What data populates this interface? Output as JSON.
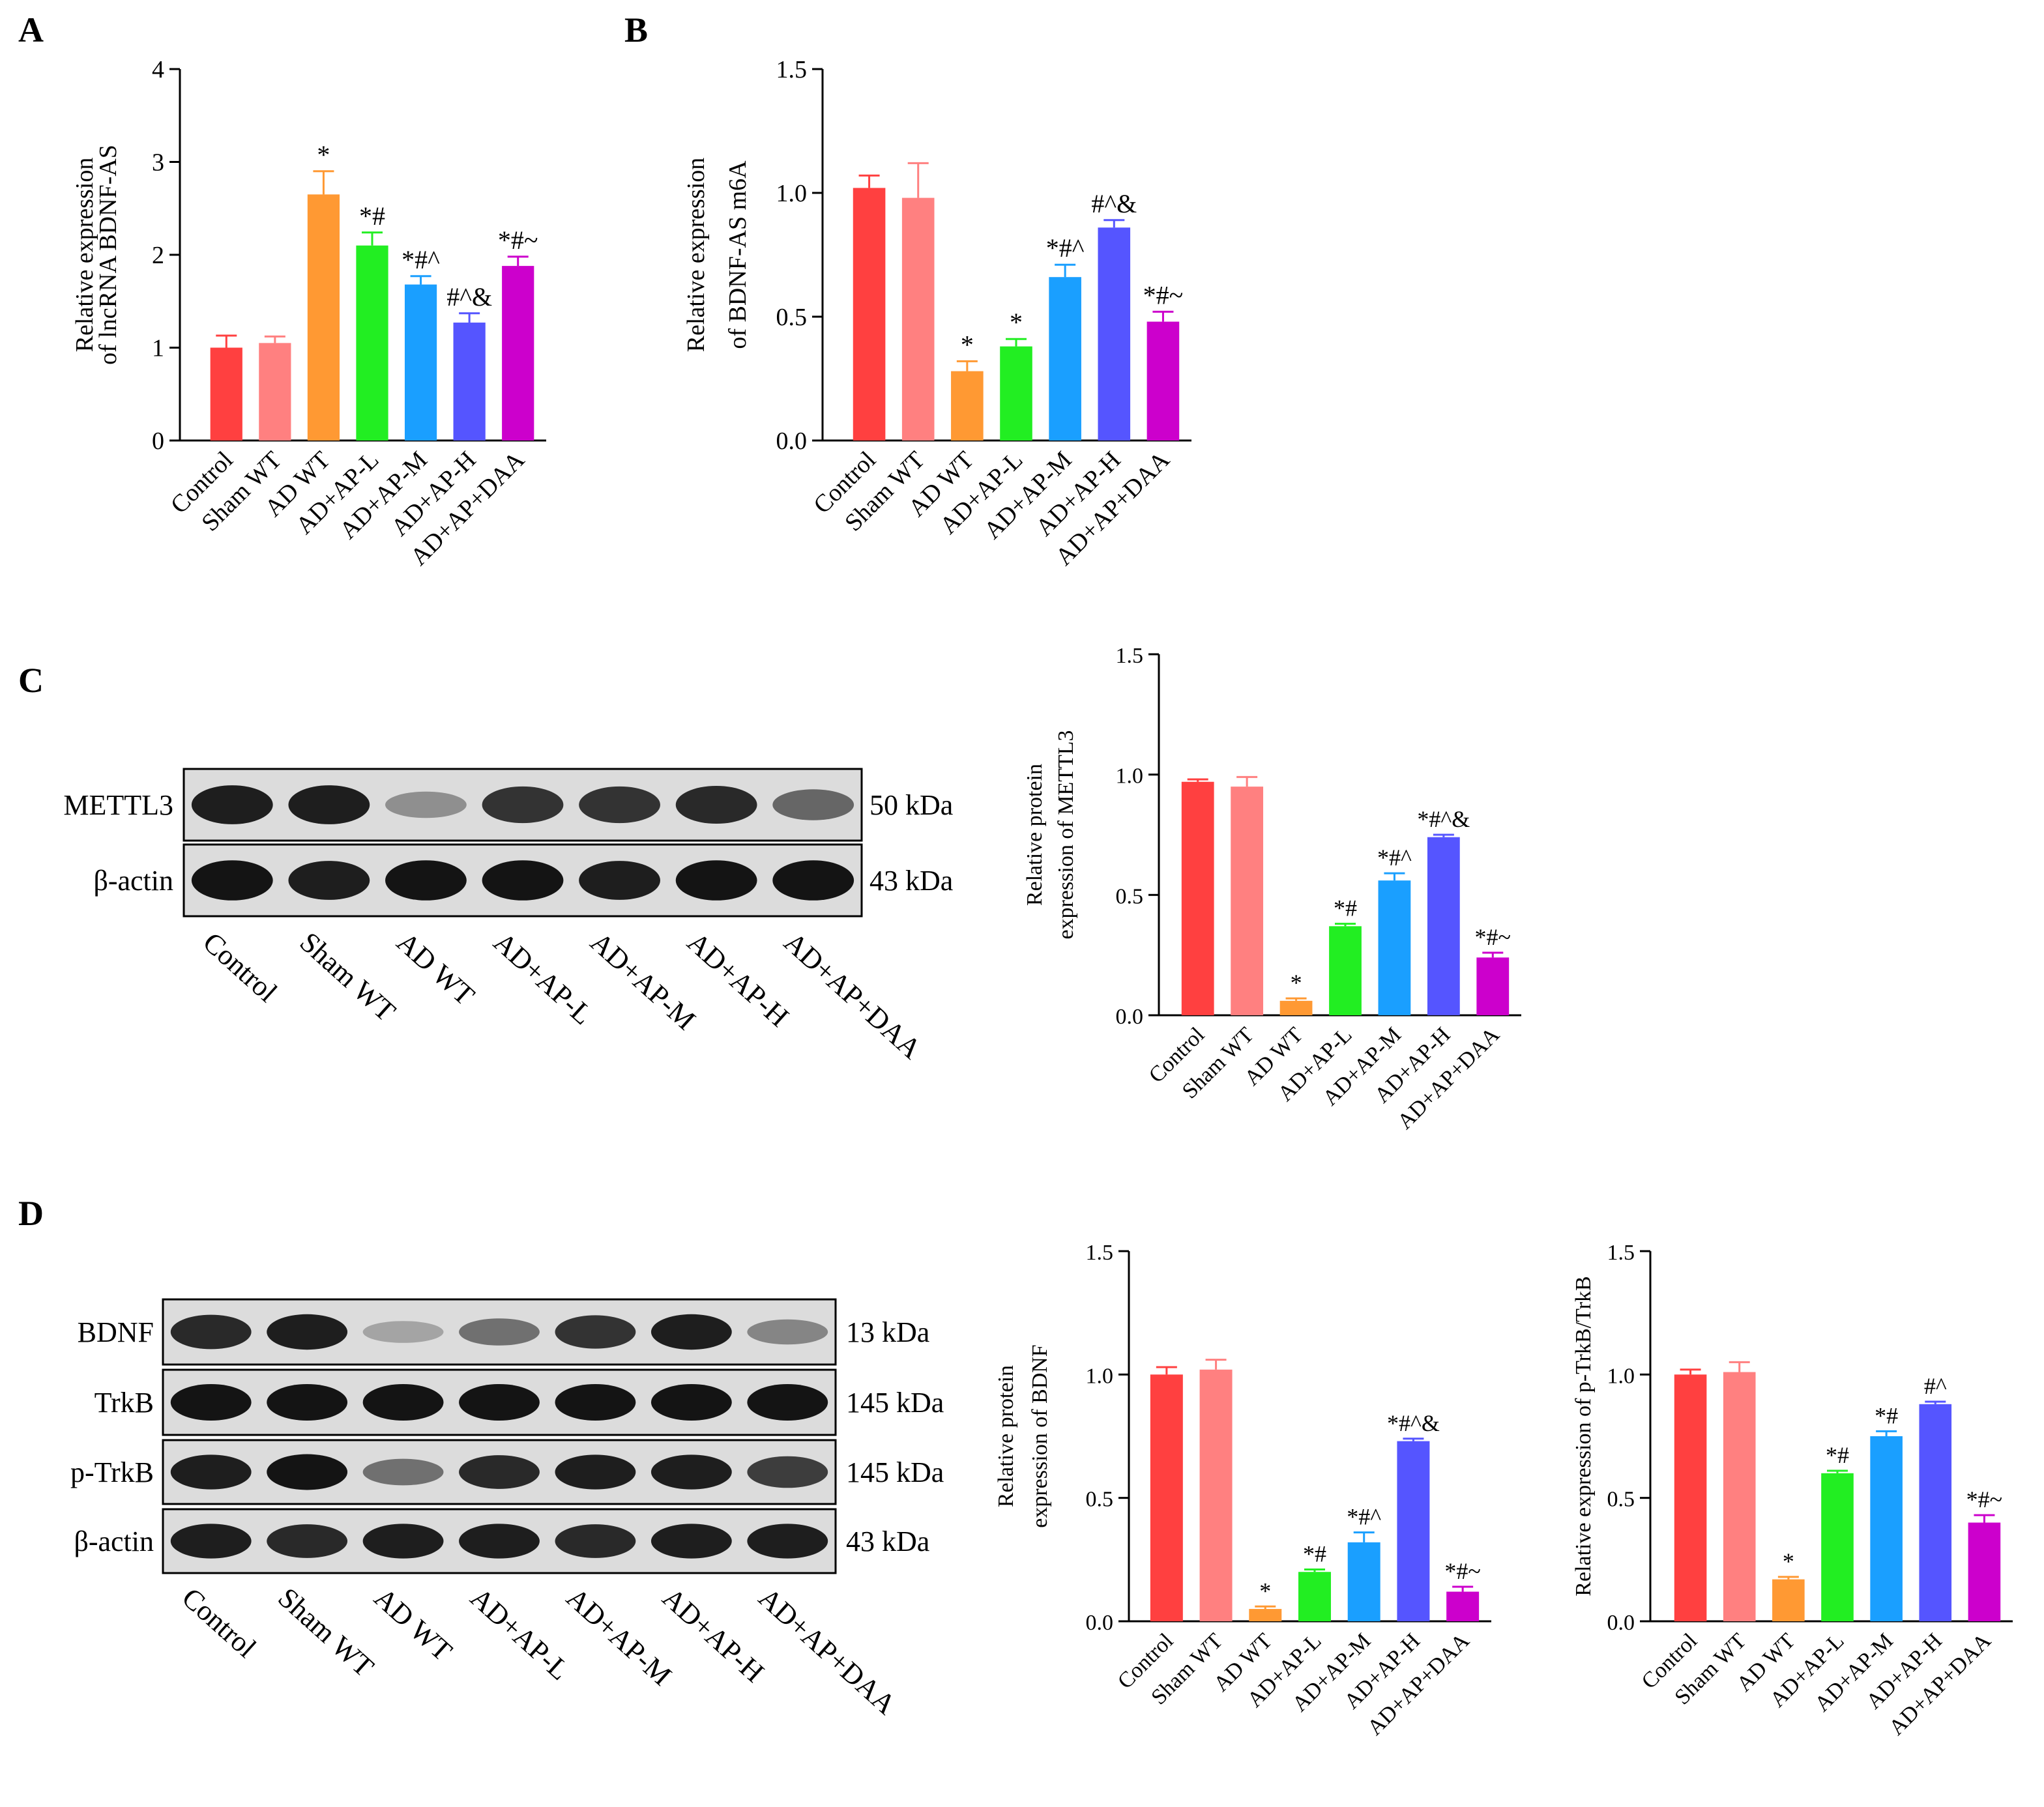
{
  "panels": {
    "A": {
      "label": "A"
    },
    "B": {
      "label": "B"
    },
    "C": {
      "label": "C",
      "blot": {
        "bands": [
          {
            "name": "METTL3",
            "size": "50 kDa",
            "intensity": [
              0.95,
              0.95,
              0.4,
              0.85,
              0.85,
              0.9,
              0.6
            ]
          },
          {
            "name": "β-actin",
            "size": "43 kDa",
            "intensity": [
              1,
              0.95,
              1,
              1,
              0.95,
              1,
              1
            ]
          }
        ],
        "lanes": [
          "Control",
          "Sham WT",
          "AD WT",
          "AD+AP-L",
          "AD+AP-M",
          "AD+AP-H",
          "AD+AP+DAA"
        ]
      }
    },
    "D": {
      "label": "D",
      "blot": {
        "bands": [
          {
            "name": "BDNF",
            "size": "13 kDa",
            "intensity": [
              0.9,
              0.95,
              0.3,
              0.55,
              0.85,
              0.95,
              0.45
            ]
          },
          {
            "name": "TrkB",
            "size": "145 kDa",
            "intensity": [
              1,
              1,
              1,
              1,
              1,
              1,
              1
            ]
          },
          {
            "name": "p-TrkB",
            "size": "145 kDa",
            "intensity": [
              0.95,
              1,
              0.55,
              0.9,
              0.95,
              0.95,
              0.8
            ]
          },
          {
            "name": "β-actin",
            "size": "43 kDa",
            "intensity": [
              0.95,
              0.9,
              0.95,
              0.95,
              0.9,
              0.95,
              0.95
            ]
          }
        ],
        "lanes": [
          "Control",
          "Sham WT",
          "AD WT",
          "AD+AP-L",
          "AD+AP-M",
          "AD+AP-H",
          "AD+AP+DAA"
        ]
      }
    }
  },
  "colors": [
    "#ff4040",
    "#ff8080",
    "#ff9933",
    "#22ee22",
    "#1a9fff",
    "#5555ff",
    "#cc00cc"
  ],
  "chart_data": [
    {
      "id": "A",
      "type": "bar",
      "categories": [
        "Control",
        "Sham WT",
        "AD WT",
        "AD+AP-L",
        "AD+AP-M",
        "AD+AP-H",
        "AD+AP+DAA"
      ],
      "values": [
        1.0,
        1.05,
        2.65,
        2.1,
        1.68,
        1.27,
        1.88
      ],
      "errors": [
        0.13,
        0.07,
        0.25,
        0.14,
        0.09,
        0.1,
        0.1
      ],
      "annotations": [
        "",
        "",
        "*",
        "*#",
        "*#^",
        "#^&",
        "*#~"
      ],
      "ylabel": [
        "Relative expression",
        "of lncRNA BDNF-AS"
      ],
      "ylim": [
        0,
        4
      ],
      "yticks": [
        "0",
        "1",
        "2",
        "3",
        "4"
      ]
    },
    {
      "id": "B",
      "type": "bar",
      "categories": [
        "Control",
        "Sham WT",
        "AD WT",
        "AD+AP-L",
        "AD+AP-M",
        "AD+AP-H",
        "AD+AP+DAA"
      ],
      "values": [
        1.02,
        0.98,
        0.28,
        0.38,
        0.66,
        0.86,
        0.48
      ],
      "errors": [
        0.05,
        0.14,
        0.04,
        0.03,
        0.05,
        0.03,
        0.04
      ],
      "annotations": [
        "",
        "",
        "*",
        "*",
        "*#^",
        "#^&",
        "*#~"
      ],
      "ylabel": [
        "Relative expression",
        "of BDNF-AS m6A"
      ],
      "ylim": [
        0,
        1.5
      ],
      "yticks": [
        "0.0",
        "0.5",
        "1.0",
        "1.5"
      ]
    },
    {
      "id": "C",
      "type": "bar",
      "categories": [
        "Control",
        "Sham WT",
        "AD WT",
        "AD+AP-L",
        "AD+AP-M",
        "AD+AP-H",
        "AD+AP+DAA"
      ],
      "values": [
        0.97,
        0.95,
        0.06,
        0.37,
        0.56,
        0.74,
        0.24
      ],
      "errors": [
        0.01,
        0.04,
        0.01,
        0.01,
        0.03,
        0.01,
        0.02
      ],
      "annotations": [
        "",
        "",
        "*",
        "*#",
        "*#^",
        "*#^&",
        "*#~"
      ],
      "ylabel": [
        "Relative protein",
        "expression of METTL3"
      ],
      "ylim": [
        0,
        1.5
      ],
      "yticks": [
        "0.0",
        "0.5",
        "1.0",
        "1.5"
      ]
    },
    {
      "id": "D1",
      "type": "bar",
      "categories": [
        "Control",
        "Sham WT",
        "AD WT",
        "AD+AP-L",
        "AD+AP-M",
        "AD+AP-H",
        "AD+AP+DAA"
      ],
      "values": [
        1.0,
        1.02,
        0.05,
        0.2,
        0.32,
        0.73,
        0.12
      ],
      "errors": [
        0.03,
        0.04,
        0.01,
        0.01,
        0.04,
        0.01,
        0.02
      ],
      "annotations": [
        "",
        "",
        "*",
        "*#",
        "*#^",
        "*#^&",
        "*#~"
      ],
      "ylabel": [
        "Relative protein",
        "expression of BDNF"
      ],
      "ylim": [
        0,
        1.5
      ],
      "yticks": [
        "0.0",
        "0.5",
        "1.0",
        "1.5"
      ]
    },
    {
      "id": "D2",
      "type": "bar",
      "categories": [
        "Control",
        "Sham WT",
        "AD WT",
        "AD+AP-L",
        "AD+AP-M",
        "AD+AP-H",
        "AD+AP+DAA"
      ],
      "values": [
        1.0,
        1.01,
        0.17,
        0.6,
        0.75,
        0.88,
        0.4
      ],
      "errors": [
        0.02,
        0.04,
        0.01,
        0.01,
        0.02,
        0.01,
        0.03
      ],
      "annotations": [
        "",
        "",
        "*",
        "*#",
        "*#",
        "#^",
        "*#~"
      ],
      "ylabel": [
        "Relative expression of p-TrkB/TrkB"
      ],
      "ylim": [
        0,
        1.5
      ],
      "yticks": [
        "0.0",
        "0.5",
        "1.0",
        "1.5"
      ]
    }
  ]
}
